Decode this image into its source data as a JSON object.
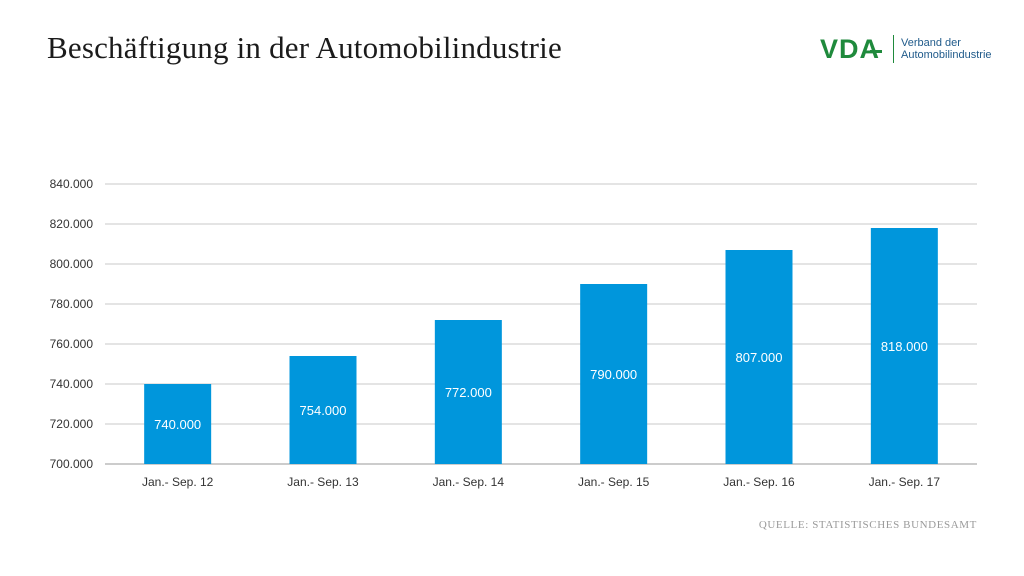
{
  "page": {
    "title": "Beschäftigung in der Automobilindustrie",
    "source": "Quelle: Statistisches Bundesamt"
  },
  "logo": {
    "mark": "VDA",
    "line1": "Verband der",
    "line2": "Automobilindustrie",
    "color": "#1f8a3c"
  },
  "chart_data": {
    "type": "bar",
    "categories": [
      "Jan.- Sep. 12",
      "Jan.- Sep. 13",
      "Jan.- Sep. 14",
      "Jan.- Sep. 15",
      "Jan.- Sep. 16",
      "Jan.- Sep. 17"
    ],
    "values": [
      740000,
      754000,
      772000,
      790000,
      807000,
      818000
    ],
    "data_labels": [
      "740.000",
      "754.000",
      "772.000",
      "790.000",
      "807.000",
      "818.000"
    ],
    "yticks": [
      700000,
      720000,
      740000,
      760000,
      780000,
      800000,
      820000,
      840000
    ],
    "ytick_labels": [
      "700.000",
      "720.000",
      "740.000",
      "760.000",
      "780.000",
      "800.000",
      "820.000",
      "840.000"
    ],
    "ylim": [
      700000,
      840000
    ],
    "grid": true,
    "bar_color": "#0096dc",
    "title": "",
    "xlabel": "",
    "ylabel": ""
  }
}
